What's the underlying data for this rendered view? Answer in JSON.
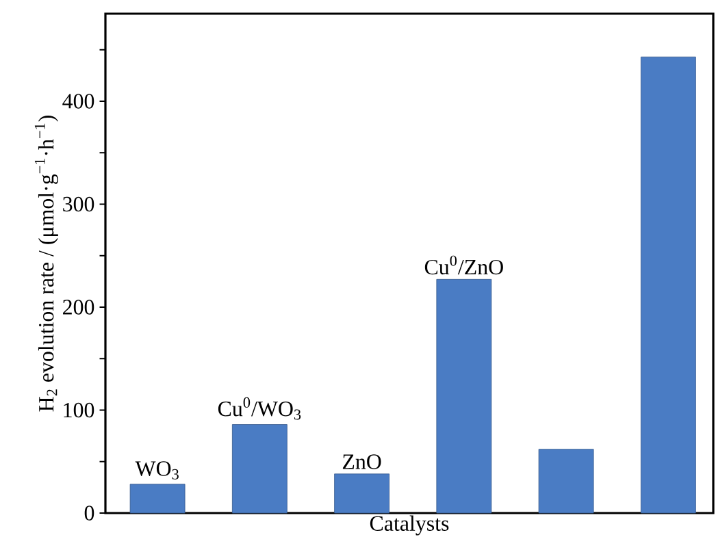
{
  "chart_data": {
    "type": "bar",
    "xlabel": "Catalysts",
    "ylabel": "H$_{2}$ evolution rate / (μmol·g$^{−1}$·h$^{−1}$)",
    "categories": [
      "WO$_{3}$",
      "Cu$^{0}$/WO$_{3}$",
      "ZnO",
      "Cu$^{0}$/ZnO",
      null,
      null
    ],
    "values": [
      28,
      86,
      38,
      227,
      62,
      443
    ],
    "color": "#4a7cc4",
    "ylim": [
      0,
      485
    ],
    "yticks": [
      0,
      {
        "value": 50,
        "label": null
      },
      100,
      {
        "value": 150,
        "label": null
      },
      200,
      {
        "value": 250,
        "label": null
      },
      300,
      {
        "value": 350,
        "label": null
      },
      400,
      {
        "value": 450,
        "label": null
      }
    ],
    "grid": false
  }
}
